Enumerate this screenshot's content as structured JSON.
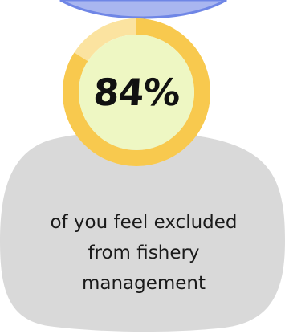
{
  "stat": {
    "value": "84%",
    "fraction": 0.84
  },
  "caption": {
    "line1": "of you feel excluded",
    "line2": "from fishery",
    "line3": "management"
  },
  "colors": {
    "ring_track": "#fbe3a0",
    "ring_fill": "#f8c94e",
    "inner_circle": "#eef7c3",
    "card": "#d9d9d9",
    "top_blob": "#a9b6f0",
    "top_blob_border": "#6f86e6"
  }
}
